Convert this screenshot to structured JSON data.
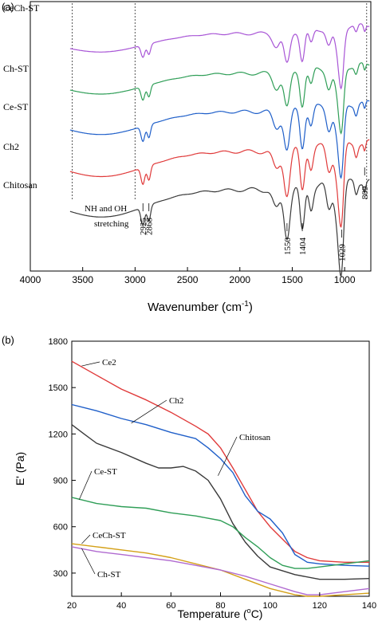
{
  "chart_data": [
    {
      "panel_label": "(a)",
      "type": "line",
      "subtype": "ftir_spectra",
      "xlabel": "Wavenumber (cm",
      "xlabel_sup": "-1",
      "xlabel_close": ")",
      "xlim": [
        4000,
        750
      ],
      "x_reversed": true,
      "xticks": [
        4000,
        3500,
        3000,
        2500,
        2000,
        1500,
        1000
      ],
      "yticks_shown": false,
      "series": [
        {
          "name": "CeCh-ST",
          "color": "#a855d6"
        },
        {
          "name": "Ch-ST",
          "color": "#2f9e57"
        },
        {
          "name": "Ce-ST",
          "color": "#1f5fc9"
        },
        {
          "name": "Ch2",
          "color": "#e03a3a"
        },
        {
          "name": "Chitosan",
          "color": "#3a3a3a"
        }
      ],
      "reference_lines": [
        3600,
        3000,
        790
      ],
      "annotations": [
        {
          "text": "NH and OH",
          "line": 1
        },
        {
          "text": "stretching",
          "line": 2
        }
      ],
      "peak_labels": [
        {
          "x": 2925,
          "text": "2925"
        },
        {
          "x": 2868,
          "text": "2868"
        },
        {
          "x": 1550,
          "text": "1550"
        },
        {
          "x": 1404,
          "text": "1404"
        },
        {
          "x": 1029,
          "text": "1029"
        },
        {
          "x": 809,
          "text": "809"
        }
      ]
    },
    {
      "panel_label": "(b)",
      "type": "line",
      "xlabel": "Temperature (",
      "xlabel_sup": "o",
      "xlabel_close": "C)",
      "ylabel": "E' (Pa)",
      "xlim": [
        20,
        140
      ],
      "ylim": [
        150,
        1800
      ],
      "xticks": [
        20,
        40,
        60,
        80,
        100,
        120,
        140
      ],
      "yticks": [
        300,
        600,
        900,
        1200,
        1500,
        1800
      ],
      "series": [
        {
          "name": "Ce2",
          "color": "#e03a3a",
          "x": [
            20,
            30,
            40,
            50,
            60,
            70,
            75,
            80,
            85,
            90,
            95,
            100,
            105,
            110,
            115,
            120,
            130,
            140
          ],
          "y": [
            1670,
            1580,
            1490,
            1420,
            1340,
            1250,
            1200,
            1110,
            980,
            840,
            700,
            600,
            520,
            440,
            400,
            380,
            370,
            370
          ]
        },
        {
          "name": "Ch2",
          "color": "#1f5fc9",
          "x": [
            20,
            30,
            40,
            50,
            60,
            70,
            75,
            80,
            85,
            90,
            95,
            100,
            105,
            110,
            115,
            120,
            130,
            140
          ],
          "y": [
            1390,
            1350,
            1300,
            1260,
            1210,
            1170,
            1110,
            1040,
            950,
            800,
            700,
            650,
            560,
            420,
            370,
            360,
            350,
            345
          ]
        },
        {
          "name": "Chitosan",
          "color": "#3a3a3a",
          "x": [
            20,
            25,
            30,
            40,
            50,
            55,
            60,
            65,
            70,
            75,
            80,
            85,
            90,
            95,
            100,
            110,
            120,
            130,
            140
          ],
          "y": [
            1260,
            1200,
            1140,
            1080,
            1010,
            980,
            980,
            990,
            960,
            900,
            780,
            620,
            500,
            410,
            340,
            290,
            260,
            260,
            265
          ]
        },
        {
          "name": "Ce-ST",
          "color": "#2f9e57",
          "x": [
            20,
            30,
            40,
            50,
            60,
            70,
            80,
            85,
            90,
            95,
            100,
            105,
            110,
            115,
            120,
            130,
            140
          ],
          "y": [
            790,
            750,
            730,
            720,
            690,
            670,
            640,
            600,
            530,
            470,
            400,
            350,
            330,
            330,
            340,
            360,
            380
          ]
        },
        {
          "name": "CeCh-ST",
          "color": "#d4a017",
          "x": [
            20,
            30,
            40,
            50,
            60,
            70,
            80,
            90,
            100,
            110,
            115,
            120,
            130,
            140
          ],
          "y": [
            490,
            470,
            450,
            430,
            400,
            360,
            320,
            260,
            200,
            160,
            150,
            150,
            160,
            170
          ]
        },
        {
          "name": "Ch-ST",
          "color": "#b06ad0",
          "x": [
            20,
            30,
            40,
            50,
            60,
            70,
            80,
            90,
            100,
            110,
            115,
            120,
            130,
            140
          ],
          "y": [
            470,
            440,
            420,
            400,
            380,
            350,
            320,
            280,
            230,
            180,
            160,
            160,
            180,
            200
          ]
        }
      ]
    }
  ]
}
